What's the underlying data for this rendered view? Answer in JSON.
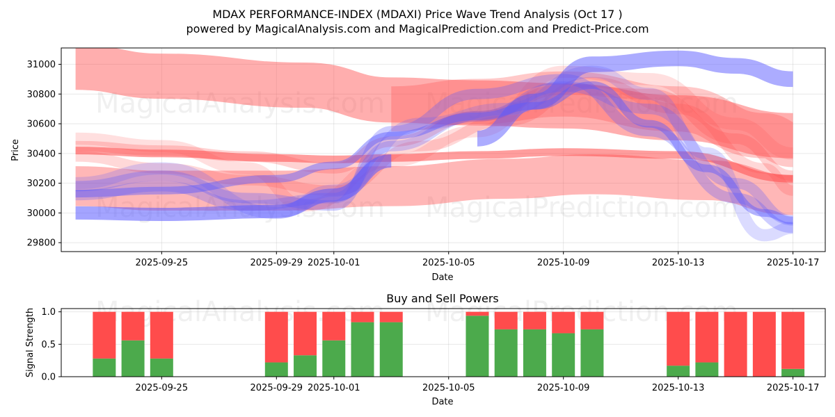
{
  "title_line1": "MDAX PERFORMANCE-INDEX (MDAXI) Price Wave Trend Analysis (Oct 17 )",
  "title_line2": "powered by MagicalAnalysis.com and MagicalPrediction.com and Predict-Price.com",
  "watermarks": {
    "left": "MagicalAnalysis.com",
    "right": "MagicalPrediction.com"
  },
  "colors": {
    "buy": "#4caa4c",
    "sell": "#ff4c4c",
    "band_red": "#ff4c4c",
    "band_blue": "#5a5aff"
  },
  "chart_data": [
    {
      "type": "area",
      "title": "MDAX PERFORMANCE-INDEX (MDAXI) Price Wave Trend Analysis (Oct 17 )",
      "xlabel": "Date",
      "ylabel": "Price",
      "xlim": [
        "2025-09-21T12:00",
        "2025-10-18T03:00"
      ],
      "ylim": [
        29740,
        31110
      ],
      "grid": true,
      "x_ticks": [
        "2025-09-25",
        "2025-09-29",
        "2025-10-01",
        "2025-10-05",
        "2025-10-09",
        "2025-10-13",
        "2025-10-17"
      ],
      "y_ticks": [
        29800,
        30000,
        30200,
        30400,
        30600,
        30800,
        31000
      ],
      "series": [
        {
          "name": "wave-red-top",
          "color": "red",
          "opacity": 0.45,
          "width": 130,
          "x": [
            "2025-09-22",
            "2025-09-25",
            "2025-09-30",
            "2025-10-03",
            "2025-10-06",
            "2025-10-09",
            "2025-10-13",
            "2025-10-17"
          ],
          "values": [
            30980,
            30920,
            30860,
            30760,
            30740,
            30720,
            30640,
            30520
          ]
        },
        {
          "name": "wave-red-upper",
          "color": "red",
          "opacity": 0.3,
          "width": 130,
          "x": [
            "2025-10-03",
            "2025-10-06",
            "2025-10-09",
            "2025-10-13",
            "2025-10-16",
            "2025-10-17"
          ],
          "values": [
            30700,
            30750,
            30800,
            30700,
            30520,
            30460
          ]
        },
        {
          "name": "wave-red-lower",
          "color": "red",
          "opacity": 0.4,
          "width": 115,
          "x": [
            "2025-09-22",
            "2025-09-25",
            "2025-09-29",
            "2025-10-03",
            "2025-10-07",
            "2025-10-10",
            "2025-10-14",
            "2025-10-17"
          ],
          "values": [
            30180,
            30150,
            30150,
            30180,
            30230,
            30260,
            30220,
            30120
          ]
        },
        {
          "name": "wave-red-mid",
          "color": "red",
          "opacity": 0.55,
          "width": 22,
          "x": [
            "2025-09-22",
            "2025-09-25",
            "2025-09-29",
            "2025-10-01",
            "2025-10-03",
            "2025-10-06",
            "2025-10-09",
            "2025-10-13",
            "2025-10-17"
          ],
          "values": [
            30420,
            30400,
            30370,
            30360,
            30370,
            30390,
            30410,
            30390,
            30230
          ]
        },
        {
          "name": "wave-red-fan1",
          "color": "red",
          "opacity": 0.25,
          "width": 30,
          "x": [
            "2025-09-22",
            "2025-09-25",
            "2025-09-28",
            "2025-10-01",
            "2025-10-03",
            "2025-10-06",
            "2025-10-09",
            "2025-10-12",
            "2025-10-15",
            "2025-10-17"
          ],
          "values": [
            30450,
            30420,
            30380,
            30300,
            30480,
            30650,
            30830,
            30800,
            30500,
            30250
          ]
        },
        {
          "name": "wave-red-fan2",
          "color": "red",
          "opacity": 0.22,
          "width": 30,
          "x": [
            "2025-09-22",
            "2025-09-25",
            "2025-09-28",
            "2025-10-01",
            "2025-10-04",
            "2025-10-07",
            "2025-10-10",
            "2025-10-13",
            "2025-10-16",
            "2025-10-17"
          ],
          "values": [
            30380,
            30300,
            30220,
            30150,
            30450,
            30620,
            30880,
            30700,
            30300,
            30150
          ]
        },
        {
          "name": "wave-red-fan3",
          "color": "red",
          "opacity": 0.18,
          "width": 35,
          "x": [
            "2025-09-22",
            "2025-09-25",
            "2025-09-28",
            "2025-09-30",
            "2025-10-03",
            "2025-10-06",
            "2025-10-09",
            "2025-10-12",
            "2025-10-15",
            "2025-10-17"
          ],
          "values": [
            30500,
            30450,
            30300,
            30050,
            30350,
            30550,
            30950,
            30900,
            30600,
            30400
          ]
        },
        {
          "name": "wave-blue-top",
          "color": "blue",
          "opacity": 0.5,
          "width": 45,
          "x": [
            "2025-10-06",
            "2025-10-08",
            "2025-10-10",
            "2025-10-13",
            "2025-10-15",
            "2025-10-17"
          ],
          "values": [
            30500,
            30750,
            31000,
            31040,
            30990,
            30900
          ]
        },
        {
          "name": "wave-blue-main",
          "color": "blue",
          "opacity": 0.45,
          "width": 22,
          "x": [
            "2025-09-22",
            "2025-09-25",
            "2025-09-29",
            "2025-10-01",
            "2025-10-03",
            "2025-10-06",
            "2025-10-08",
            "2025-10-10",
            "2025-10-12",
            "2025-10-14",
            "2025-10-16",
            "2025-10-17"
          ],
          "values": [
            30130,
            30150,
            30230,
            30320,
            30520,
            30650,
            30720,
            30860,
            30600,
            30300,
            30000,
            29950
          ]
        },
        {
          "name": "wave-blue-b",
          "color": "blue",
          "opacity": 0.3,
          "width": 30,
          "x": [
            "2025-09-22",
            "2025-09-25",
            "2025-09-28",
            "2025-10-01",
            "2025-10-03",
            "2025-10-06",
            "2025-10-09",
            "2025-10-12",
            "2025-10-15",
            "2025-10-17"
          ],
          "values": [
            30180,
            30250,
            30100,
            30050,
            30550,
            30800,
            30900,
            30550,
            30100,
            29900
          ]
        },
        {
          "name": "wave-blue-c",
          "color": "blue",
          "opacity": 0.28,
          "width": 30,
          "x": [
            "2025-09-22",
            "2025-09-25",
            "2025-09-28",
            "2025-10-01",
            "2025-10-03",
            "2025-10-06",
            "2025-10-09",
            "2025-10-12",
            "2025-10-15",
            "2025-10-17"
          ],
          "values": [
            30120,
            30180,
            30050,
            30100,
            30450,
            30650,
            30850,
            30700,
            30200,
            29950
          ]
        },
        {
          "name": "wave-blue-d",
          "color": "blue",
          "opacity": 0.22,
          "width": 35,
          "x": [
            "2025-09-22",
            "2025-09-25",
            "2025-09-29",
            "2025-10-01",
            "2025-10-04",
            "2025-10-07",
            "2025-10-10",
            "2025-10-12",
            "2025-10-14",
            "2025-10-16",
            "2025-10-17"
          ],
          "values": [
            30200,
            30300,
            30000,
            30150,
            30600,
            30700,
            30950,
            30800,
            30400,
            29850,
            29900
          ]
        },
        {
          "name": "wave-blue-low",
          "color": "blue",
          "opacity": 0.55,
          "width": 38,
          "x": [
            "2025-09-22",
            "2025-09-25",
            "2025-09-29",
            "2025-10-01",
            "2025-10-03"
          ],
          "values": [
            30000,
            29990,
            30010,
            30120,
            30350
          ]
        }
      ]
    },
    {
      "type": "bar",
      "title": "Buy and Sell Powers",
      "xlabel": "Date",
      "ylabel": "Signal Strength",
      "xlim": [
        "2025-09-21T12:00",
        "2025-10-18T03:00"
      ],
      "ylim": [
        0,
        1.05
      ],
      "x_ticks": [
        "2025-09-25",
        "2025-09-29",
        "2025-10-01",
        "2025-10-05",
        "2025-10-09",
        "2025-10-13",
        "2025-10-17"
      ],
      "y_ticks": [
        "0.0",
        "0.5",
        "1.0"
      ],
      "dates": [
        "2025-09-23",
        "2025-09-24",
        "2025-09-25",
        "2025-09-29",
        "2025-09-30",
        "2025-10-01",
        "2025-10-02",
        "2025-10-03",
        "2025-10-06",
        "2025-10-07",
        "2025-10-08",
        "2025-10-09",
        "2025-10-10",
        "2025-10-13",
        "2025-10-14",
        "2025-10-15",
        "2025-10-16",
        "2025-10-17"
      ],
      "series": [
        {
          "name": "Buy",
          "values": [
            0.28,
            0.56,
            0.28,
            0.22,
            0.33,
            0.56,
            0.84,
            0.84,
            0.94,
            0.73,
            0.73,
            0.67,
            0.73,
            0.17,
            0.22,
            0.0,
            0.0,
            0.12
          ]
        },
        {
          "name": "Sell",
          "values": [
            0.72,
            0.44,
            0.72,
            0.78,
            0.67,
            0.44,
            0.16,
            0.16,
            0.06,
            0.27,
            0.27,
            0.33,
            0.27,
            0.83,
            0.78,
            1.0,
            1.0,
            0.88
          ]
        }
      ]
    }
  ]
}
